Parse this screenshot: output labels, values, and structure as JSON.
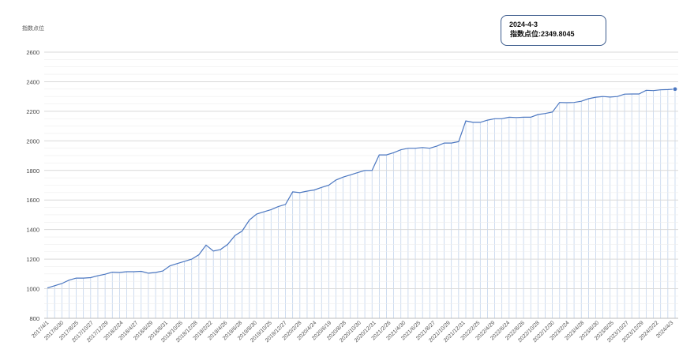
{
  "chart_data": {
    "type": "line",
    "ylabel": "指数点位",
    "ylim": [
      800,
      2600
    ],
    "yticks": [
      800,
      1000,
      1200,
      1400,
      1600,
      1800,
      2000,
      2200,
      2400,
      2600
    ],
    "xtick_labels": [
      "2017/4/1",
      "2017/6/30",
      "2017/8/25",
      "2017/10/27",
      "2017/12/29",
      "2018/2/24",
      "2018/4/27",
      "2018/6/29",
      "2018/8/31",
      "2018/10/26",
      "2018/12/28",
      "2019/2/22",
      "2019/4/26",
      "2019/6/28",
      "2019/8/30",
      "2019/10/25",
      "2019/12/27",
      "2020/2/28",
      "2020/4/24",
      "2020/6/19",
      "2020/8/28",
      "2020/10/30",
      "2020/12/31",
      "2021/2/26",
      "2021/4/30",
      "2021/6/25",
      "2021/8/27",
      "2021/10/29",
      "2021/12/31",
      "2022/2/25",
      "2022/4/29",
      "2022/6/24",
      "2022/8/26",
      "2022/10/28",
      "2022/12/30",
      "2023/2/24",
      "2023/4/28",
      "2023/6/30",
      "2023/8/25",
      "2023/10/27",
      "2023/12/29",
      "2024/2/22",
      "2024/4/3"
    ],
    "values": [
      1005,
      1020,
      1035,
      1058,
      1072,
      1072,
      1075,
      1088,
      1098,
      1112,
      1110,
      1115,
      1115,
      1118,
      1105,
      1110,
      1120,
      1155,
      1170,
      1185,
      1200,
      1230,
      1295,
      1255,
      1265,
      1300,
      1360,
      1390,
      1465,
      1505,
      1520,
      1535,
      1555,
      1570,
      1655,
      1650,
      1660,
      1668,
      1685,
      1700,
      1735,
      1755,
      1770,
      1785,
      1800,
      1800,
      1905,
      1905,
      1920,
      1940,
      1950,
      1950,
      1955,
      1950,
      1965,
      1985,
      1985,
      1995,
      2135,
      2125,
      2125,
      2140,
      2150,
      2150,
      2160,
      2158,
      2160,
      2160,
      2178,
      2185,
      2195,
      2260,
      2258,
      2260,
      2268,
      2285,
      2295,
      2300,
      2296,
      2300,
      2316,
      2317,
      2317,
      2342,
      2340,
      2345,
      2347,
      2349.8045
    ],
    "highlight": {
      "date": "2024-4-3",
      "label": "指数点位:2349.8045",
      "value": 2349.8045
    },
    "grid": true,
    "colors": {
      "line": "#4a76c0",
      "grid_h": "#d9d9d9",
      "grid_v": "#b9cdea",
      "marker": "#4a76c0"
    }
  }
}
